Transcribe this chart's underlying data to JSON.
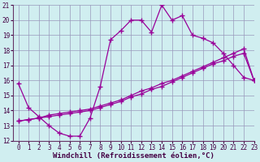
{
  "line1_x": [
    0,
    1,
    2,
    3,
    4,
    5,
    6,
    7,
    8,
    9,
    10,
    11,
    12,
    13,
    14,
    15,
    16,
    17,
    18,
    19,
    20,
    21,
    22,
    23
  ],
  "line1_y": [
    15.8,
    14.2,
    13.6,
    13.0,
    12.5,
    12.3,
    12.3,
    13.5,
    15.6,
    18.7,
    19.3,
    20.0,
    20.0,
    19.2,
    21.0,
    20.0,
    20.3,
    19.0,
    18.8,
    18.5,
    17.8,
    17.0,
    16.2,
    16.0
  ],
  "line2_x": [
    0,
    1,
    2,
    3,
    4,
    5,
    6,
    7,
    8,
    9,
    10,
    11,
    12,
    13,
    14,
    15,
    16,
    17,
    18,
    19,
    20,
    21,
    22,
    23
  ],
  "line2_y": [
    13.3,
    13.4,
    13.5,
    13.6,
    13.7,
    13.8,
    13.9,
    14.0,
    14.2,
    14.4,
    14.6,
    14.9,
    15.1,
    15.4,
    15.6,
    15.9,
    16.2,
    16.5,
    16.8,
    17.1,
    17.3,
    17.6,
    17.8,
    16.0
  ],
  "line3_x": [
    0,
    1,
    2,
    3,
    4,
    5,
    6,
    7,
    8,
    9,
    10,
    11,
    12,
    13,
    14,
    15,
    16,
    17,
    18,
    19,
    20,
    21,
    22,
    23
  ],
  "line3_y": [
    13.3,
    13.4,
    13.5,
    13.7,
    13.8,
    13.9,
    14.0,
    14.1,
    14.3,
    14.5,
    14.7,
    15.0,
    15.3,
    15.5,
    15.8,
    16.0,
    16.3,
    16.6,
    16.9,
    17.2,
    17.5,
    17.8,
    18.1,
    16.0
  ],
  "line_color": "#990099",
  "bg_color": "#d0eef0",
  "grid_color": "#9999bb",
  "xlabel": "Windchill (Refroidissement éolien,°C)",
  "xlim": [
    -0.5,
    23
  ],
  "ylim": [
    12,
    21
  ],
  "yticks": [
    12,
    13,
    14,
    15,
    16,
    17,
    18,
    19,
    20,
    21
  ],
  "xticks": [
    0,
    1,
    2,
    3,
    4,
    5,
    6,
    7,
    8,
    9,
    10,
    11,
    12,
    13,
    14,
    15,
    16,
    17,
    18,
    19,
    20,
    21,
    22,
    23
  ],
  "marker": "+",
  "markersize": 4,
  "markeredgewidth": 1.0,
  "linewidth": 0.9,
  "xlabel_fontsize": 6.5,
  "tick_fontsize": 5.5
}
